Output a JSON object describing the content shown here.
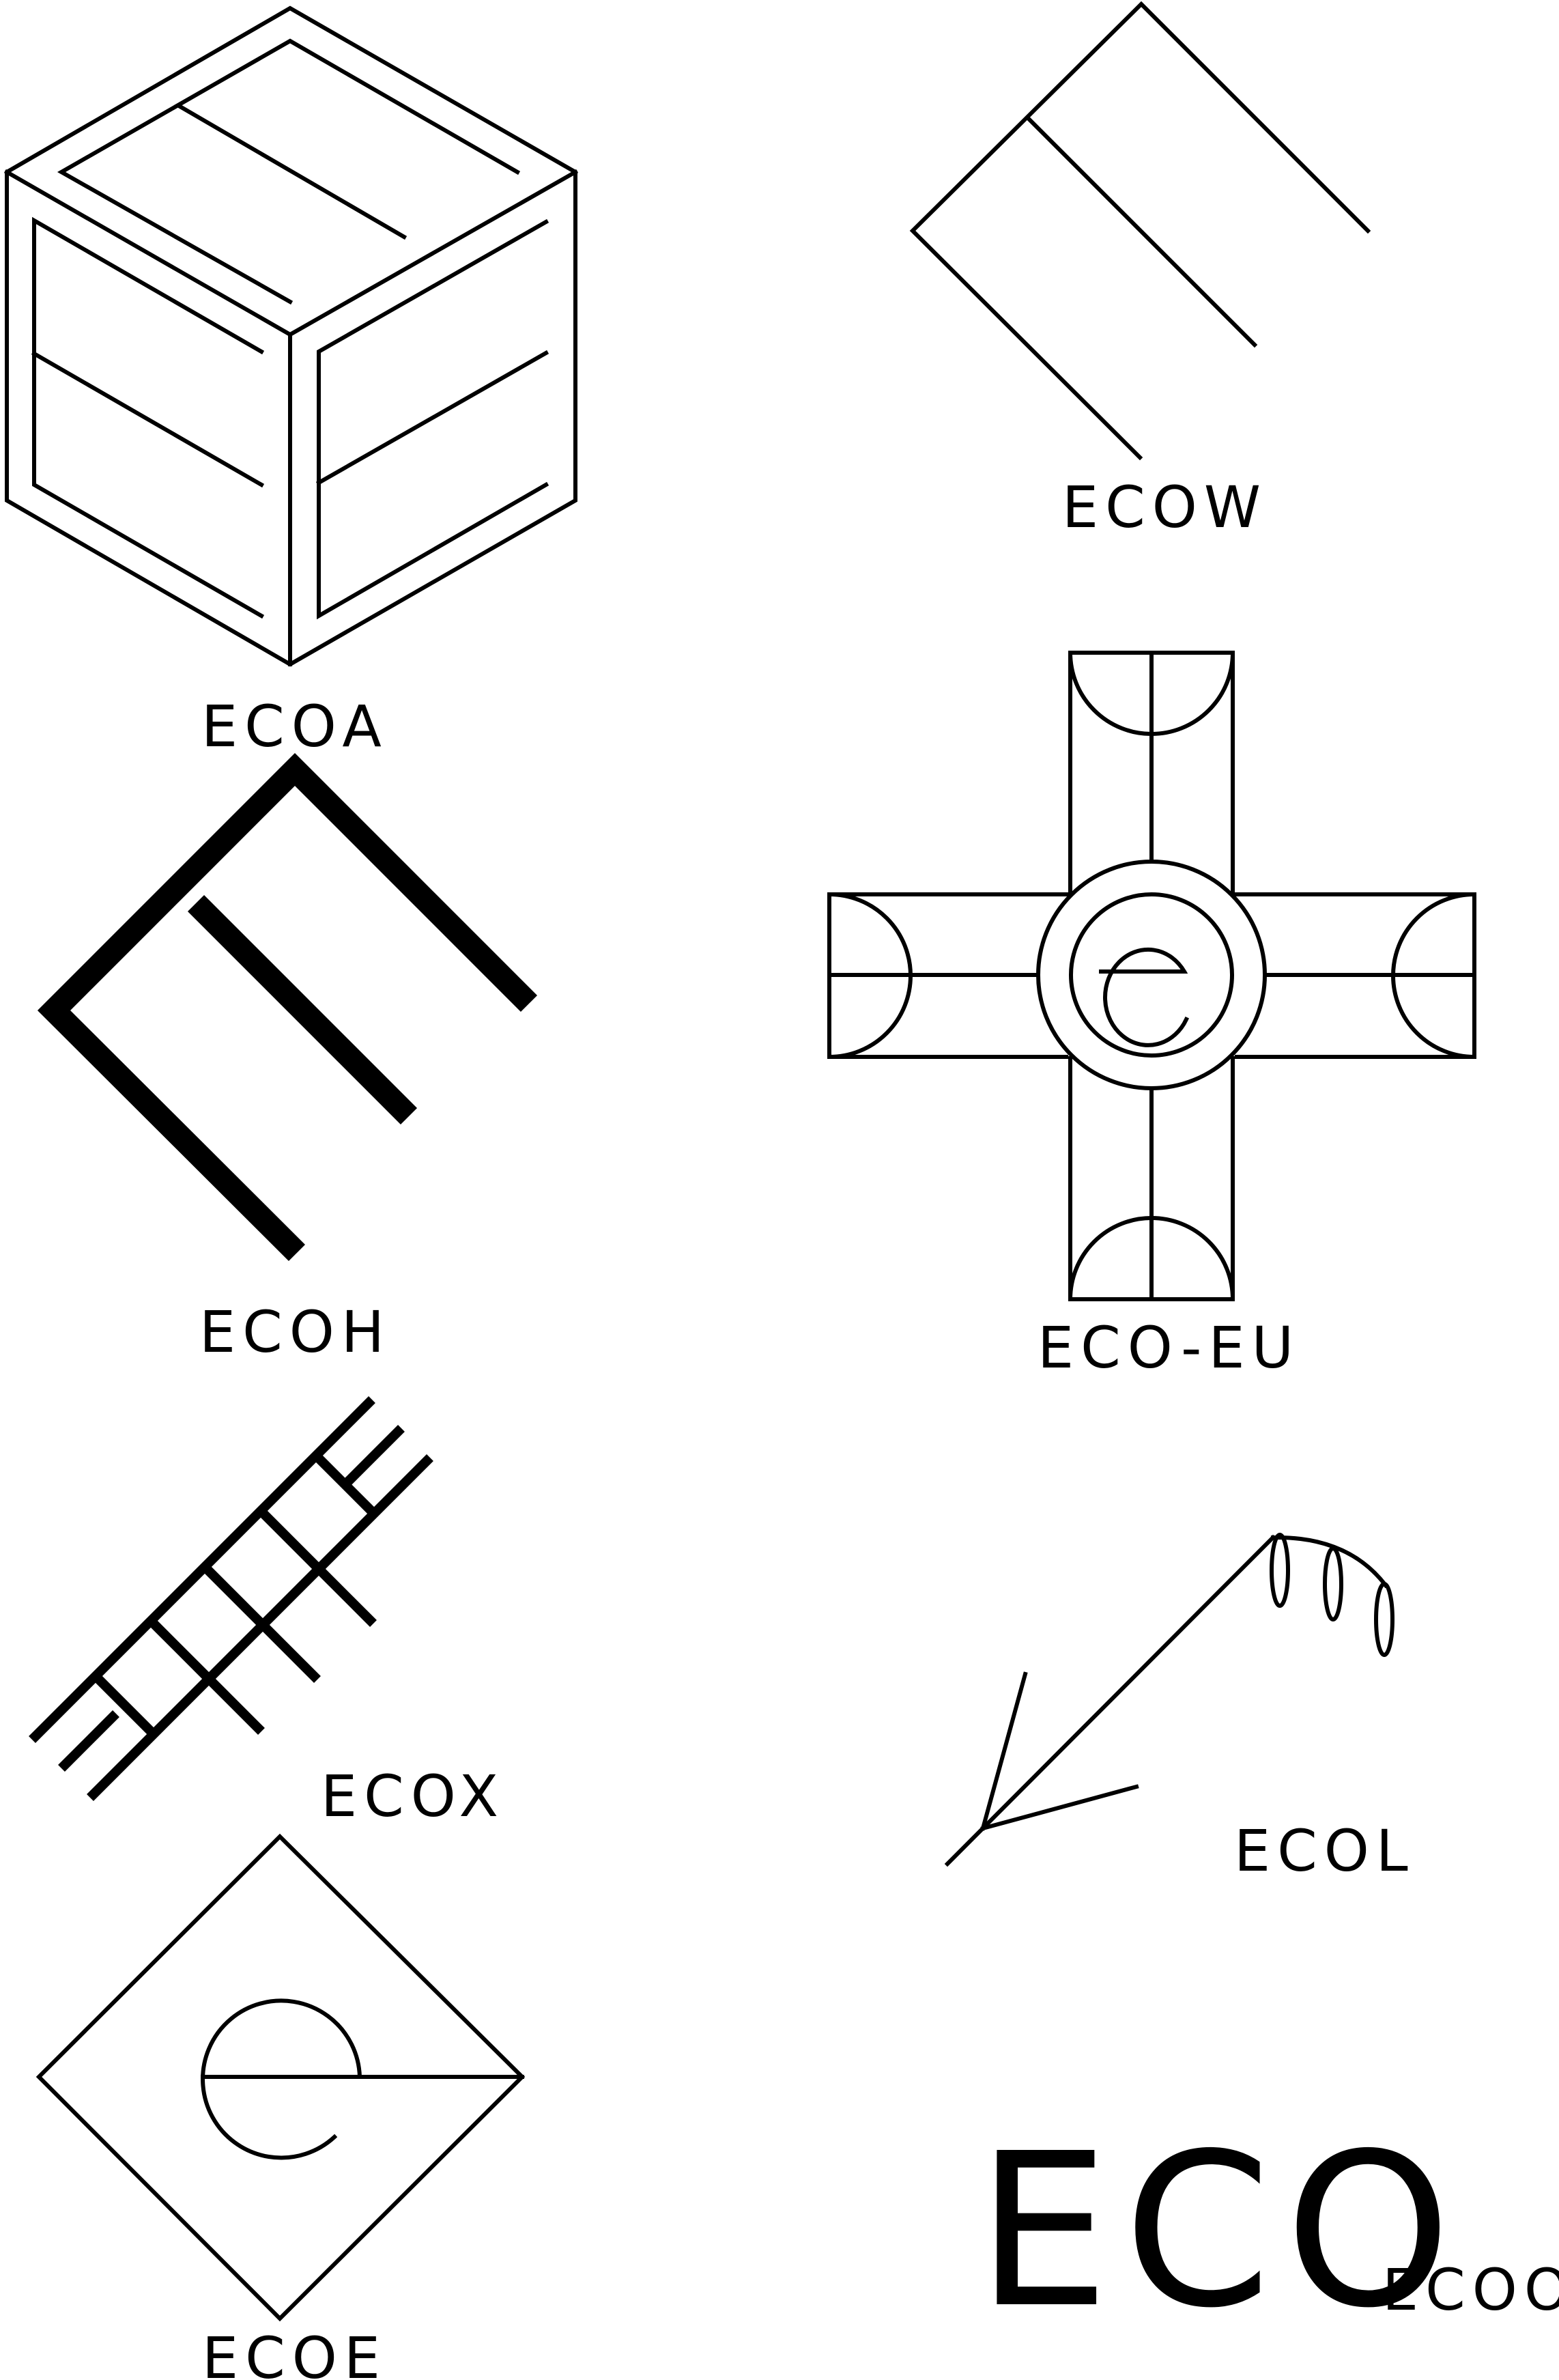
{
  "logos": [
    {
      "id": "ecoa",
      "caption": "ECOA",
      "icon": "isometric-cube-E-icon"
    },
    {
      "id": "ecow",
      "caption": "ECOW",
      "icon": "rotated-E-outline-icon"
    },
    {
      "id": "ecoh",
      "caption": "ECOH",
      "icon": "rotated-E-bold-icon"
    },
    {
      "id": "ecoeu",
      "caption": "ECO-EU",
      "icon": "cross-circle-e-icon"
    },
    {
      "id": "ecox",
      "caption": "ECOX",
      "icon": "ladder-E-icon"
    },
    {
      "id": "ecol",
      "caption": "ECOL",
      "icon": "arrow-vine-icon"
    },
    {
      "id": "ecoe",
      "caption": "ECOE",
      "icon": "diamond-e-icon"
    },
    {
      "id": "ecoo",
      "caption": "ECOO",
      "icon": "eco-wordmark-icon",
      "wordmark": "ECO"
    }
  ],
  "colors": {
    "ink": "#000000",
    "background": "#ffffff"
  }
}
